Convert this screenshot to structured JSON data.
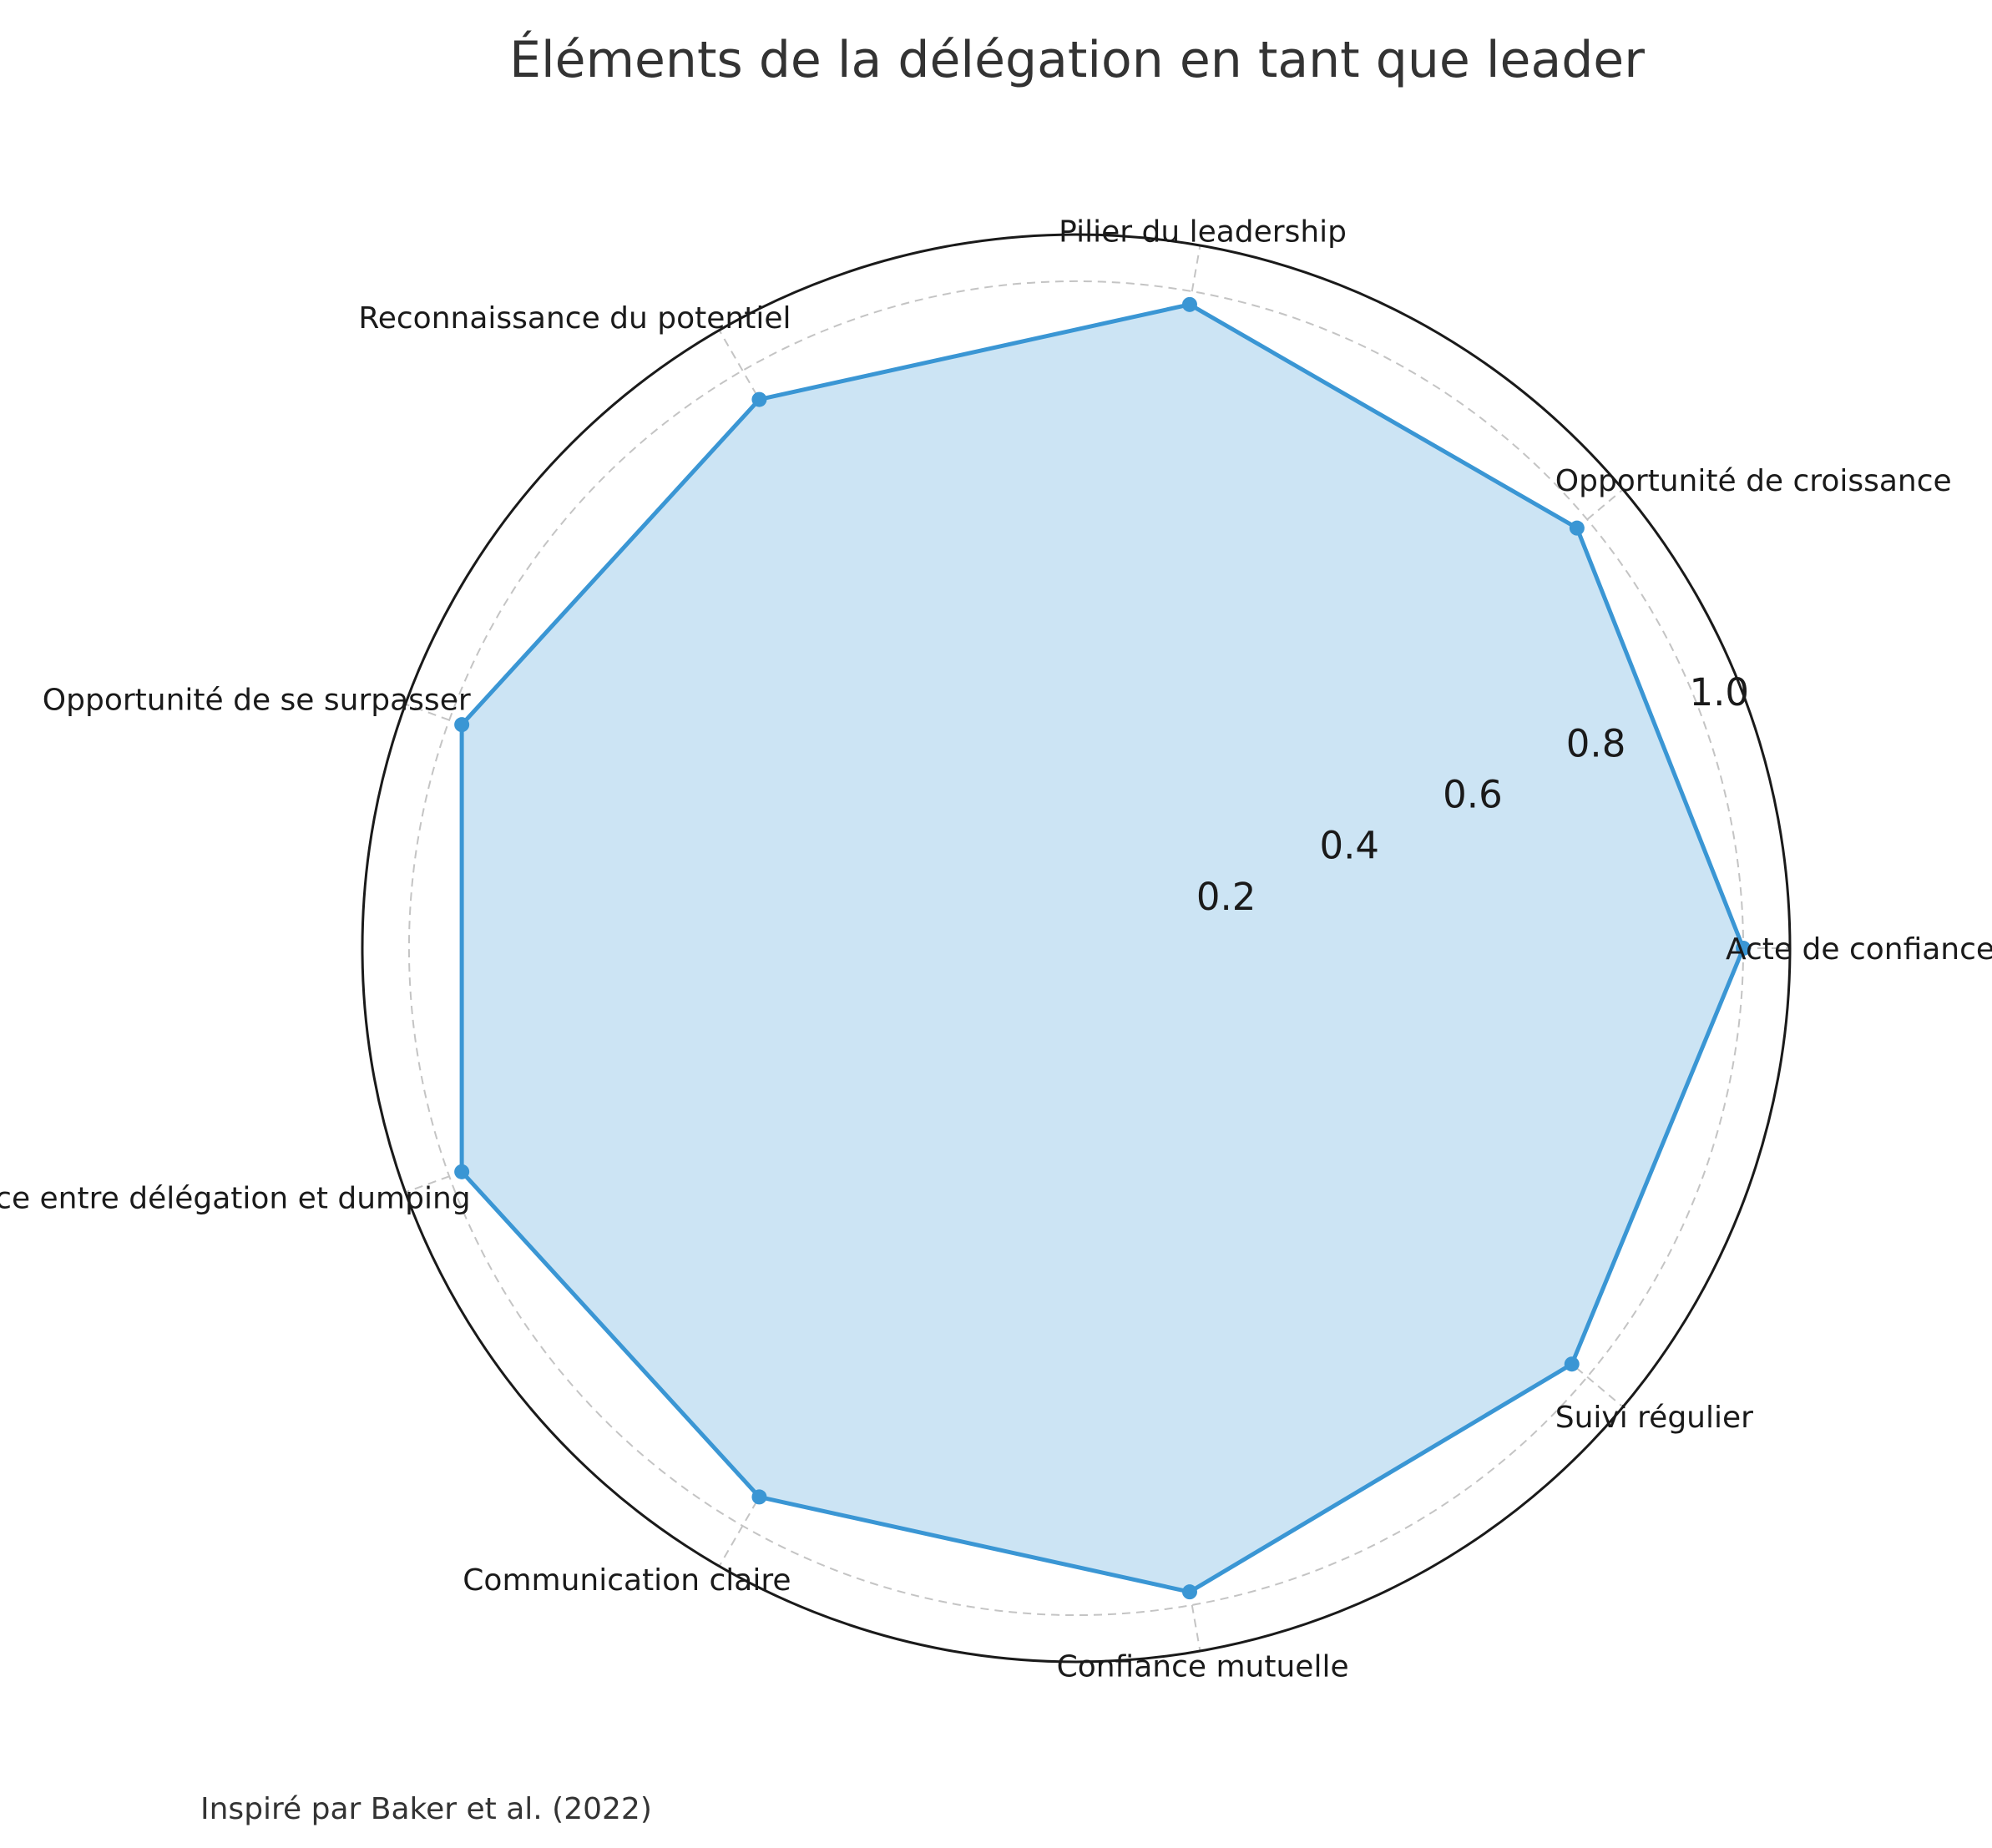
{
  "chart_data": {
    "type": "radar",
    "title": "Éléments de la délégation en tant que leader",
    "categories": [
      "Acte de confiance",
      "Opportunité de croissance",
      "Pilier du leadership",
      "Reconnaissance du potentiel",
      "Opportunité de se surpasser",
      "Différence entre délégation et dumping",
      "Communication claire",
      "Confiance mutuelle",
      "Suivi régulier"
    ],
    "values": [
      1.0,
      0.98,
      0.98,
      0.95,
      0.98,
      0.98,
      0.95,
      0.98,
      0.97
    ],
    "rlim": [
      0,
      1.07
    ],
    "rticks": [
      0.2,
      0.4,
      0.6,
      0.8,
      1.0
    ],
    "rtick_labels": [
      "0.2",
      "0.4",
      "0.6",
      "0.8",
      "1.0"
    ],
    "grid": true,
    "colors": {
      "line": "#3a96d4",
      "fill": "#cce4f4",
      "grid": "#c4c4c4",
      "frame": "#1a1a1a"
    },
    "footnote": "Inspiré par Baker et al. (2022)"
  }
}
